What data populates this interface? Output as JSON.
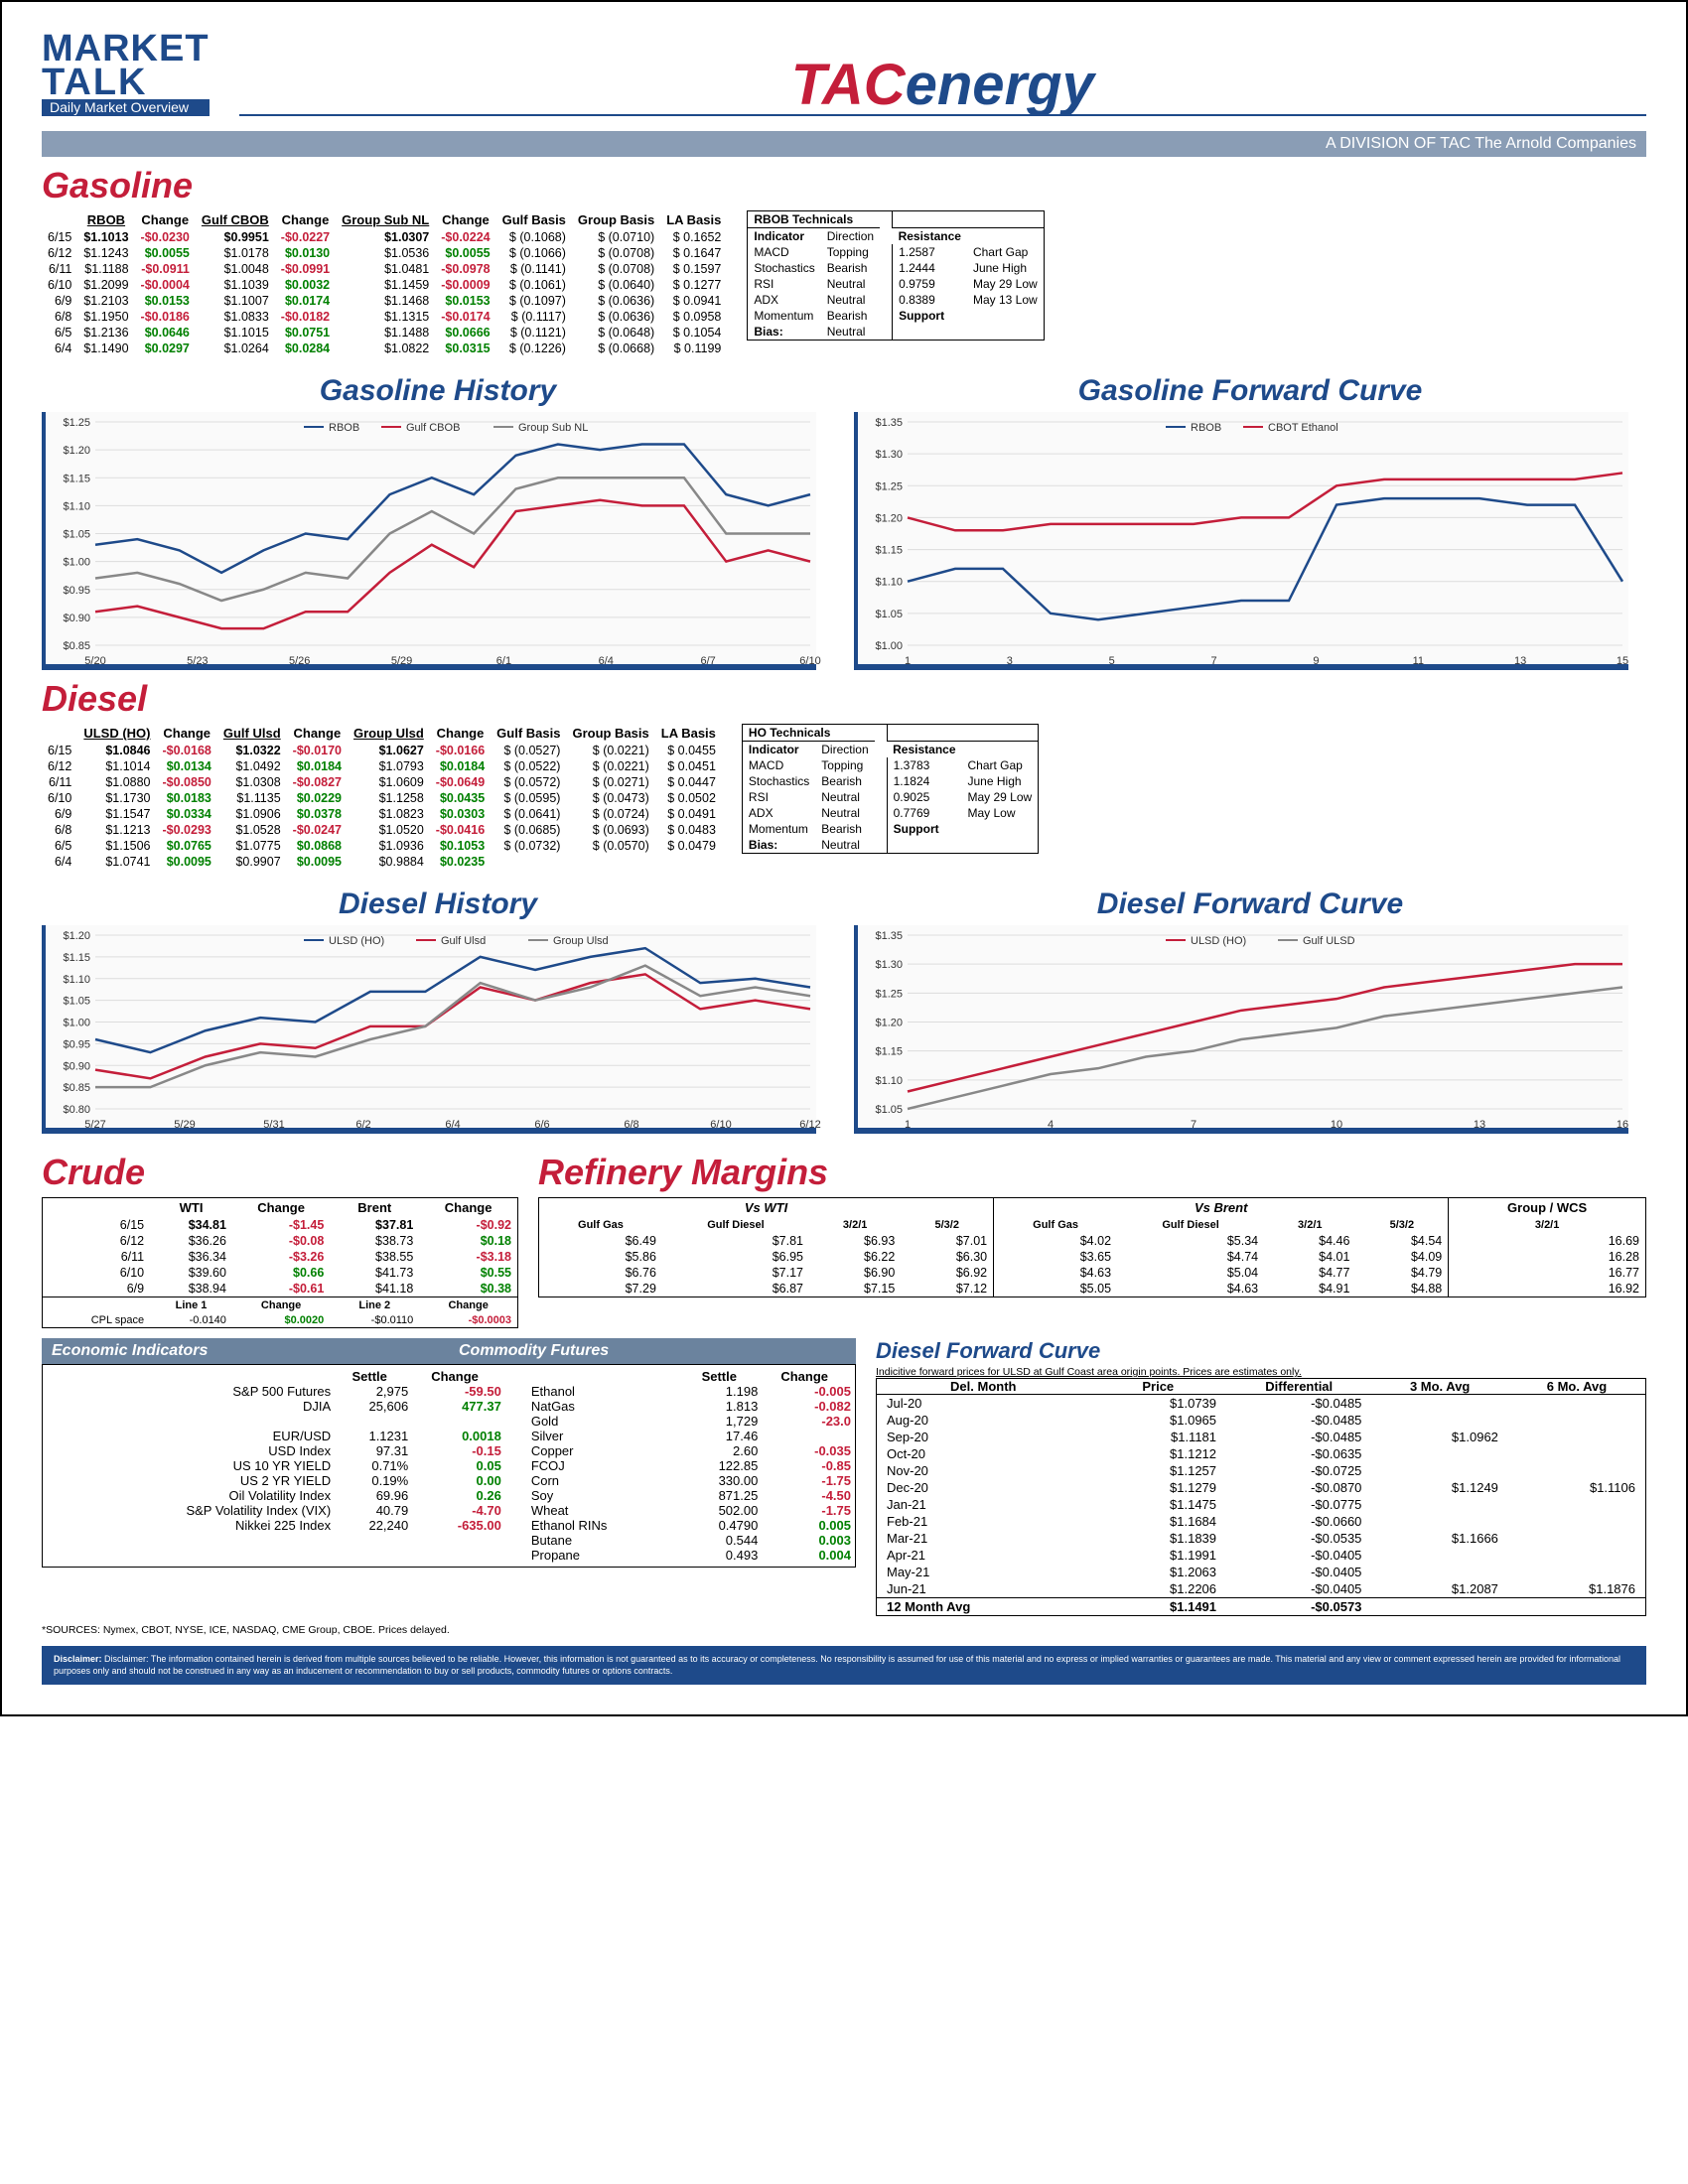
{
  "header": {
    "market": "MARKET",
    "talk": "TALK",
    "subtitle": "Daily Market Overview",
    "logo_tac": "TAC",
    "logo_energy": "energy",
    "division": "A DIVISION OF TAC The Arnold Companies"
  },
  "gasoline": {
    "title": "Gasoline",
    "headers": [
      "",
      "RBOB",
      "Change",
      "Gulf CBOB",
      "Change",
      "Group Sub NL",
      "Change",
      "Gulf Basis",
      "Group Basis",
      "LA Basis"
    ],
    "rows": [
      [
        "6/15",
        "$1.1013",
        "-$0.0230",
        "$0.9951",
        "-$0.0227",
        "$1.0307",
        "-$0.0224",
        "$ (0.1068)",
        "$    (0.0710)",
        "$    0.1652"
      ],
      [
        "6/12",
        "$1.1243",
        "$0.0055",
        "$1.0178",
        "$0.0130",
        "$1.0536",
        "$0.0055",
        "$ (0.1066)",
        "$    (0.0708)",
        "$    0.1647"
      ],
      [
        "6/11",
        "$1.1188",
        "-$0.0911",
        "$1.0048",
        "-$0.0991",
        "$1.0481",
        "-$0.0978",
        "$ (0.1141)",
        "$    (0.0708)",
        "$    0.1597"
      ],
      [
        "6/10",
        "$1.2099",
        "-$0.0004",
        "$1.1039",
        "$0.0032",
        "$1.1459",
        "-$0.0009",
        "$ (0.1061)",
        "$    (0.0640)",
        "$    0.1277"
      ],
      [
        "6/9",
        "$1.2103",
        "$0.0153",
        "$1.1007",
        "$0.0174",
        "$1.1468",
        "$0.0153",
        "$ (0.1097)",
        "$    (0.0636)",
        "$    0.0941"
      ],
      [
        "6/8",
        "$1.1950",
        "-$0.0186",
        "$1.0833",
        "-$0.0182",
        "$1.1315",
        "-$0.0174",
        "$ (0.1117)",
        "$    (0.0636)",
        "$    0.0958"
      ],
      [
        "6/5",
        "$1.2136",
        "$0.0646",
        "$1.1015",
        "$0.0751",
        "$1.1488",
        "$0.0666",
        "$ (0.1121)",
        "$    (0.0648)",
        "$    0.1054"
      ],
      [
        "6/4",
        "$1.1490",
        "$0.0297",
        "$1.0264",
        "$0.0284",
        "$1.0822",
        "$0.0315",
        "$ (0.1226)",
        "$    (0.0668)",
        "$    0.1199"
      ]
    ],
    "tech_title": "RBOB Technicals",
    "tech_rows": [
      [
        "Indicator",
        "Direction",
        "",
        "Resistance",
        ""
      ],
      [
        "MACD",
        "Topping",
        "",
        "1.2587",
        "Chart Gap"
      ],
      [
        "Stochastics",
        "Bearish",
        "",
        "1.2444",
        "June High"
      ],
      [
        "RSI",
        "Neutral",
        "",
        "0.9759",
        "May 29 Low"
      ],
      [
        "ADX",
        "Neutral",
        "",
        "0.8389",
        "May 13 Low"
      ],
      [
        "Momentum",
        "Bearish",
        "",
        "Support",
        ""
      ],
      [
        "Bias:",
        "Neutral",
        "",
        "",
        ""
      ]
    ]
  },
  "gas_history": {
    "title": "Gasoline History",
    "series": [
      "RBOB",
      "Gulf CBOB",
      "Group Sub NL"
    ],
    "colors": [
      "#1e4a8a",
      "#c41e3a",
      "#888888"
    ],
    "xlabels": [
      "5/20",
      "5/23",
      "5/26",
      "5/29",
      "6/1",
      "6/4",
      "6/7",
      "6/10"
    ],
    "ylabels": [
      "$0.85",
      "$0.90",
      "$0.95",
      "$1.00",
      "$1.05",
      "$1.10",
      "$1.15",
      "$1.20",
      "$1.25"
    ],
    "ymin": 0.85,
    "ymax": 1.25,
    "data": {
      "RBOB": [
        1.03,
        1.04,
        1.02,
        0.98,
        1.02,
        1.05,
        1.04,
        1.12,
        1.15,
        1.12,
        1.19,
        1.21,
        1.2,
        1.21,
        1.21,
        1.12,
        1.1,
        1.12
      ],
      "Gulf CBOB": [
        0.91,
        0.92,
        0.9,
        0.88,
        0.88,
        0.91,
        0.91,
        0.98,
        1.03,
        0.99,
        1.09,
        1.1,
        1.11,
        1.1,
        1.1,
        1.0,
        1.02,
        1.0
      ],
      "Group Sub NL": [
        0.97,
        0.98,
        0.96,
        0.93,
        0.95,
        0.98,
        0.97,
        1.05,
        1.09,
        1.05,
        1.13,
        1.15,
        1.15,
        1.15,
        1.15,
        1.05,
        1.05,
        1.05
      ]
    }
  },
  "gas_forward": {
    "title": "Gasoline Forward Curve",
    "series": [
      "RBOB",
      "CBOT Ethanol"
    ],
    "colors": [
      "#1e4a8a",
      "#c41e3a"
    ],
    "xlabels": [
      "1",
      "3",
      "5",
      "7",
      "9",
      "11",
      "13",
      "15"
    ],
    "ylabels": [
      "$1.00",
      "$1.05",
      "$1.10",
      "$1.15",
      "$1.20",
      "$1.25",
      "$1.30",
      "$1.35"
    ],
    "ymin": 1.0,
    "ymax": 1.35,
    "data": {
      "RBOB": [
        1.1,
        1.12,
        1.12,
        1.05,
        1.04,
        1.05,
        1.06,
        1.07,
        1.07,
        1.22,
        1.23,
        1.23,
        1.23,
        1.22,
        1.22,
        1.1
      ],
      "CBOT Ethanol": [
        1.2,
        1.18,
        1.18,
        1.19,
        1.19,
        1.19,
        1.19,
        1.2,
        1.2,
        1.25,
        1.26,
        1.26,
        1.26,
        1.26,
        1.26,
        1.27
      ]
    }
  },
  "diesel": {
    "title": "Diesel",
    "headers": [
      "",
      "ULSD (HO)",
      "Change",
      "Gulf Ulsd",
      "Change",
      "Group Ulsd",
      "Change",
      "Gulf Basis",
      "Group Basis",
      "LA Basis"
    ],
    "rows": [
      [
        "6/15",
        "$1.0846",
        "-$0.0168",
        "$1.0322",
        "-$0.0170",
        "$1.0627",
        "-$0.0166",
        "$ (0.0527)",
        "$    (0.0221)",
        "$    0.0455"
      ],
      [
        "6/12",
        "$1.1014",
        "$0.0134",
        "$1.0492",
        "$0.0184",
        "$1.0793",
        "$0.0184",
        "$ (0.0522)",
        "$    (0.0221)",
        "$    0.0451"
      ],
      [
        "6/11",
        "$1.0880",
        "-$0.0850",
        "$1.0308",
        "-$0.0827",
        "$1.0609",
        "-$0.0649",
        "$ (0.0572)",
        "$    (0.0271)",
        "$    0.0447"
      ],
      [
        "6/10",
        "$1.1730",
        "$0.0183",
        "$1.1135",
        "$0.0229",
        "$1.1258",
        "$0.0435",
        "$ (0.0595)",
        "$    (0.0473)",
        "$    0.0502"
      ],
      [
        "6/9",
        "$1.1547",
        "$0.0334",
        "$1.0906",
        "$0.0378",
        "$1.0823",
        "$0.0303",
        "$ (0.0641)",
        "$    (0.0724)",
        "$    0.0491"
      ],
      [
        "6/8",
        "$1.1213",
        "-$0.0293",
        "$1.0528",
        "-$0.0247",
        "$1.0520",
        "-$0.0416",
        "$ (0.0685)",
        "$    (0.0693)",
        "$    0.0483"
      ],
      [
        "6/5",
        "$1.1506",
        "$0.0765",
        "$1.0775",
        "$0.0868",
        "$1.0936",
        "$0.1053",
        "$ (0.0732)",
        "$    (0.0570)",
        "$    0.0479"
      ],
      [
        "6/4",
        "$1.0741",
        "$0.0095",
        "$0.9907",
        "$0.0095",
        "$0.9884",
        "$0.0235",
        "",
        "",
        ""
      ]
    ],
    "tech_title": "HO Technicals",
    "tech_rows": [
      [
        "Indicator",
        "Direction",
        "",
        "Resistance",
        ""
      ],
      [
        "MACD",
        "Topping",
        "",
        "1.3783",
        "Chart Gap"
      ],
      [
        "Stochastics",
        "Bearish",
        "",
        "1.1824",
        "June High"
      ],
      [
        "RSI",
        "Neutral",
        "",
        "0.9025",
        "May 29 Low"
      ],
      [
        "ADX",
        "Neutral",
        "",
        "0.7769",
        "May Low"
      ],
      [
        "Momentum",
        "Bearish",
        "",
        "Support",
        ""
      ],
      [
        "Bias:",
        "Neutral",
        "",
        "",
        ""
      ]
    ]
  },
  "diesel_history": {
    "title": "Diesel History",
    "series": [
      "ULSD (HO)",
      "Gulf Ulsd",
      "Group Ulsd"
    ],
    "colors": [
      "#1e4a8a",
      "#c41e3a",
      "#888888"
    ],
    "xlabels": [
      "5/27",
      "5/29",
      "5/31",
      "6/2",
      "6/4",
      "6/6",
      "6/8",
      "6/10",
      "6/12"
    ],
    "ylabels": [
      "$0.80",
      "$0.85",
      "$0.90",
      "$0.95",
      "$1.00",
      "$1.05",
      "$1.10",
      "$1.15",
      "$1.20"
    ],
    "ymin": 0.8,
    "ymax": 1.2,
    "data": {
      "ULSD (HO)": [
        0.96,
        0.93,
        0.98,
        1.01,
        1.0,
        1.07,
        1.07,
        1.15,
        1.12,
        1.15,
        1.17,
        1.09,
        1.1,
        1.08
      ],
      "Gulf Ulsd": [
        0.89,
        0.87,
        0.92,
        0.95,
        0.94,
        0.99,
        0.99,
        1.08,
        1.05,
        1.09,
        1.11,
        1.03,
        1.05,
        1.03
      ],
      "Group Ulsd": [
        0.85,
        0.85,
        0.9,
        0.93,
        0.92,
        0.96,
        0.99,
        1.09,
        1.05,
        1.08,
        1.13,
        1.06,
        1.08,
        1.06
      ]
    }
  },
  "diesel_forward": {
    "title": "Diesel Forward Curve",
    "series": [
      "ULSD (HO)",
      "Gulf ULSD"
    ],
    "colors": [
      "#c41e3a",
      "#888888"
    ],
    "xlabels": [
      "1",
      "4",
      "7",
      "10",
      "13",
      "16"
    ],
    "ylabels": [
      "$1.05",
      "$1.10",
      "$1.15",
      "$1.20",
      "$1.25",
      "$1.30",
      "$1.35"
    ],
    "ymin": 1.05,
    "ymax": 1.35,
    "data": {
      "ULSD (HO)": [
        1.08,
        1.1,
        1.12,
        1.14,
        1.16,
        1.18,
        1.2,
        1.22,
        1.23,
        1.24,
        1.26,
        1.27,
        1.28,
        1.29,
        1.3,
        1.3
      ],
      "Gulf ULSD": [
        1.05,
        1.07,
        1.09,
        1.11,
        1.12,
        1.14,
        1.15,
        1.17,
        1.18,
        1.19,
        1.21,
        1.22,
        1.23,
        1.24,
        1.25,
        1.26
      ]
    }
  },
  "crude": {
    "title": "Crude",
    "headers": [
      "",
      "WTI",
      "Change",
      "Brent",
      "Change"
    ],
    "rows": [
      [
        "6/15",
        "$34.81",
        "-$1.45",
        "$37.81",
        "-$0.92"
      ],
      [
        "6/12",
        "$36.26",
        "-$0.08",
        "$38.73",
        "$0.18"
      ],
      [
        "6/11",
        "$36.34",
        "-$3.26",
        "$38.55",
        "-$3.18"
      ],
      [
        "6/10",
        "$39.60",
        "$0.66",
        "$41.73",
        "$0.55"
      ],
      [
        "6/9",
        "$38.94",
        "-$0.61",
        "$41.18",
        "$0.38"
      ]
    ],
    "line_headers": [
      "",
      "Line 1",
      "Change",
      "Line 2",
      "Change"
    ],
    "line_row": [
      "CPL space",
      "-0.0140",
      "$0.0020",
      "-$0.0110",
      "-$0.0003"
    ]
  },
  "margins": {
    "title": "Refinery Margins",
    "headers": [
      "Vs WTI",
      "",
      "",
      "",
      "Vs Brent",
      "",
      "",
      "",
      "Group / WCS"
    ],
    "sub": [
      "Gulf Gas",
      "Gulf Diesel",
      "3/2/1",
      "5/3/2",
      "Gulf Gas",
      "Gulf Diesel",
      "3/2/1",
      "5/3/2",
      "3/2/1"
    ],
    "rows": [
      [
        "$6.49",
        "$7.81",
        "$6.93",
        "$7.01",
        "$4.02",
        "$5.34",
        "$4.46",
        "$4.54",
        "16.69"
      ],
      [
        "$5.86",
        "$6.95",
        "$6.22",
        "$6.30",
        "$3.65",
        "$4.74",
        "$4.01",
        "$4.09",
        "16.28"
      ],
      [
        "$6.76",
        "$7.17",
        "$6.90",
        "$6.92",
        "$4.63",
        "$5.04",
        "$4.77",
        "$4.79",
        "16.77"
      ],
      [
        "$7.29",
        "$6.87",
        "$7.15",
        "$7.12",
        "$5.05",
        "$4.63",
        "$4.91",
        "$4.88",
        "16.92"
      ]
    ]
  },
  "econ": {
    "title": "Economic Indicators",
    "rows": [
      [
        "S&P 500 Futures",
        "2,975",
        "-59.50"
      ],
      [
        "DJIA",
        "25,606",
        "477.37"
      ],
      [
        "",
        "",
        ""
      ],
      [
        "EUR/USD",
        "1.1231",
        "0.0018"
      ],
      [
        "USD Index",
        "97.31",
        "-0.15"
      ],
      [
        "US 10 YR YIELD",
        "0.71%",
        "0.05"
      ],
      [
        "US 2 YR YIELD",
        "0.19%",
        "0.00"
      ],
      [
        "Oil Volatility Index",
        "69.96",
        "0.26"
      ],
      [
        "S&P Volatility Index (VIX)",
        "40.79",
        "-4.70"
      ],
      [
        "Nikkei 225 Index",
        "22,240",
        "-635.00"
      ]
    ]
  },
  "commod": {
    "title": "Commodity Futures",
    "rows": [
      [
        "Ethanol",
        "1.198",
        "-0.005"
      ],
      [
        "NatGas",
        "1.813",
        "-0.082"
      ],
      [
        "Gold",
        "1,729",
        "-23.0"
      ],
      [
        "Silver",
        "17.46",
        ""
      ],
      [
        "Copper",
        "2.60",
        "-0.035"
      ],
      [
        "FCOJ",
        "122.85",
        "-0.85"
      ],
      [
        "Corn",
        "330.00",
        "-1.75"
      ],
      [
        "Soy",
        "871.25",
        "-4.50"
      ],
      [
        "Wheat",
        "502.00",
        "-1.75"
      ],
      [
        "Ethanol RINs",
        "0.4790",
        "0.005"
      ],
      [
        "Butane",
        "0.544",
        "0.003"
      ],
      [
        "Propane",
        "0.493",
        "0.004"
      ]
    ]
  },
  "diesel_fc_table": {
    "title": "Diesel Forward Curve",
    "note": "Indicitive forward prices for ULSD at Gulf Coast area origin points. Prices are estimates only.",
    "headers": [
      "Del. Month",
      "Price",
      "Differential",
      "3 Mo. Avg",
      "6 Mo. Avg"
    ],
    "rows": [
      [
        "Jul-20",
        "$1.0739",
        "-$0.0485",
        "",
        ""
      ],
      [
        "Aug-20",
        "$1.0965",
        "-$0.0485",
        "",
        ""
      ],
      [
        "Sep-20",
        "$1.1181",
        "-$0.0485",
        "$1.0962",
        ""
      ],
      [
        "Oct-20",
        "$1.1212",
        "-$0.0635",
        "",
        ""
      ],
      [
        "Nov-20",
        "$1.1257",
        "-$0.0725",
        "",
        ""
      ],
      [
        "Dec-20",
        "$1.1279",
        "-$0.0870",
        "$1.1249",
        "$1.1106"
      ],
      [
        "Jan-21",
        "$1.1475",
        "-$0.0775",
        "",
        ""
      ],
      [
        "Feb-21",
        "$1.1684",
        "-$0.0660",
        "",
        ""
      ],
      [
        "Mar-21",
        "$1.1839",
        "-$0.0535",
        "$1.1666",
        ""
      ],
      [
        "Apr-21",
        "$1.1991",
        "-$0.0405",
        "",
        ""
      ],
      [
        "May-21",
        "$1.2063",
        "-$0.0405",
        "",
        ""
      ],
      [
        "Jun-21",
        "$1.2206",
        "-$0.0405",
        "$1.2087",
        "$1.1876"
      ],
      [
        "12 Month Avg",
        "$1.1491",
        "-$0.0573",
        "",
        ""
      ]
    ]
  },
  "sources": "*SOURCES: Nymex, CBOT, NYSE, ICE, NASDAQ, CME Group, CBOE.  Prices delayed.",
  "disclaimer": "Disclaimer: The information contained herein is derived from multiple sources believed to be reliable. However, this information is not guaranteed as to its accuracy or completeness. No responsibility is assumed for use of this material and no express or implied warranties or guarantees are made. This material and any view or comment expressed herein are provided for informational purposes only and should not be construed in any way as an inducement or recommendation to buy or sell products, commodity futures or options contracts."
}
